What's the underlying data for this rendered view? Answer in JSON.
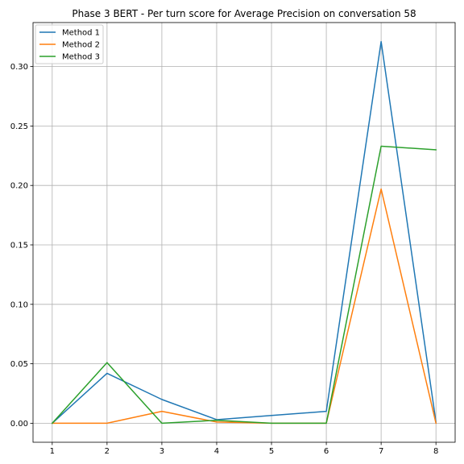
{
  "chart_data": {
    "type": "line",
    "title": "Phase 3 BERT - Per turn score for Average Precision on conversation 58",
    "xlabel": "",
    "ylabel": "",
    "x": [
      1,
      2,
      3,
      4,
      5,
      6,
      7,
      8
    ],
    "x_ticks": [
      "1",
      "2",
      "3",
      "4",
      "5",
      "6",
      "7",
      "8"
    ],
    "y_ticks": [
      "0.00",
      "0.05",
      "0.10",
      "0.15",
      "0.20",
      "0.25",
      "0.30"
    ],
    "xlim": [
      0.65,
      8.35
    ],
    "ylim": [
      -0.016,
      0.337
    ],
    "grid": true,
    "legend_position": "upper left",
    "series": [
      {
        "name": "Method 1",
        "color": "#1f77b4",
        "values": [
          0.0,
          0.042,
          0.02,
          0.003,
          0.0065,
          0.01,
          0.321,
          0.001
        ]
      },
      {
        "name": "Method 2",
        "color": "#ff7f0e",
        "values": [
          0.0,
          0.0,
          0.01,
          0.001,
          0.0,
          0.0,
          0.197,
          0.0
        ]
      },
      {
        "name": "Method 3",
        "color": "#2ca02c",
        "values": [
          0.0,
          0.051,
          0.0,
          0.0025,
          0.0,
          0.0,
          0.233,
          0.23
        ]
      }
    ]
  }
}
